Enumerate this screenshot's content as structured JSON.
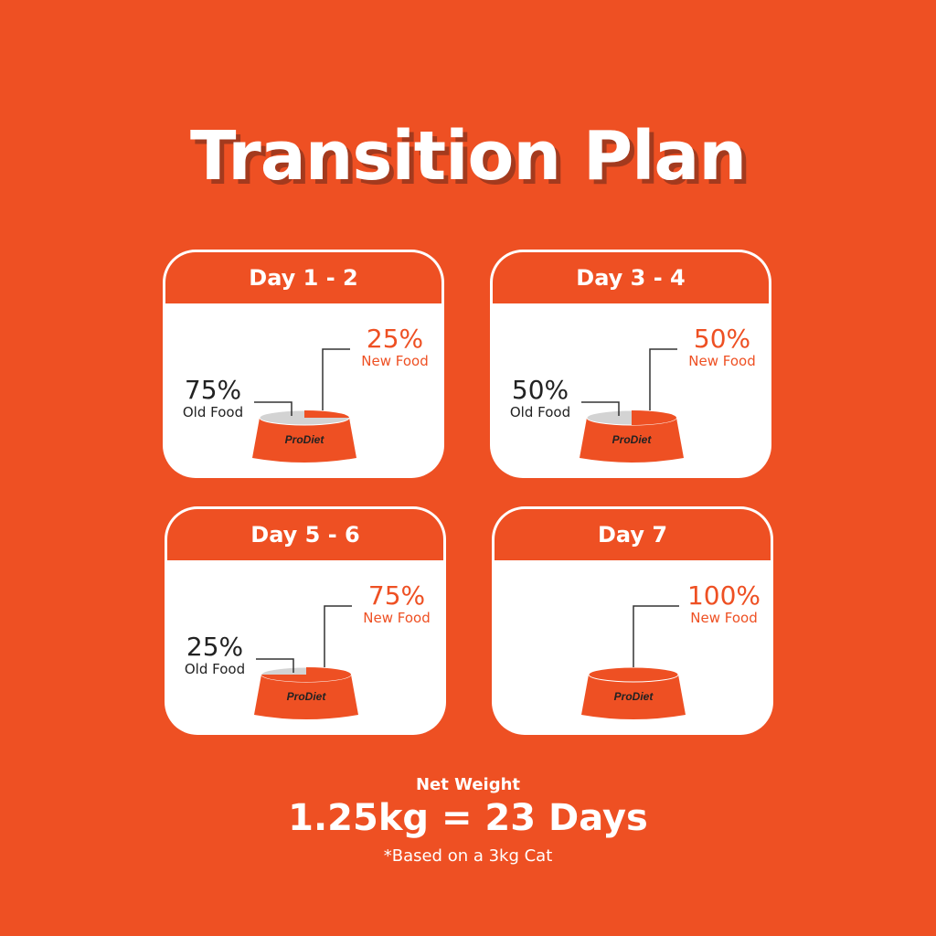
{
  "title": "Transition Plan",
  "colors": {
    "background": "#EE5023",
    "new_food": "#EE5023",
    "old_food": "#D3D3D3",
    "card": "#FFFFFF"
  },
  "brand": "ProDiet",
  "stages": [
    {
      "day": "Day 1 - 2",
      "new_pct": "25%",
      "new_label": "New Food",
      "old_pct": "75%",
      "old_label": "Old Food",
      "new_fraction": 0.25
    },
    {
      "day": "Day 3 - 4",
      "new_pct": "50%",
      "new_label": "New Food",
      "old_pct": "50%",
      "old_label": "Old Food",
      "new_fraction": 0.5
    },
    {
      "day": "Day 5 - 6",
      "new_pct": "75%",
      "new_label": "New Food",
      "old_pct": "25%",
      "old_label": "Old Food",
      "new_fraction": 0.75
    },
    {
      "day": "Day 7",
      "new_pct": "100%",
      "new_label": "New Food",
      "new_fraction": 1.0
    }
  ],
  "footer": {
    "heading": "Net Weight",
    "main": "1.25kg = 23 Days",
    "note": "*Based on a 3kg Cat"
  }
}
